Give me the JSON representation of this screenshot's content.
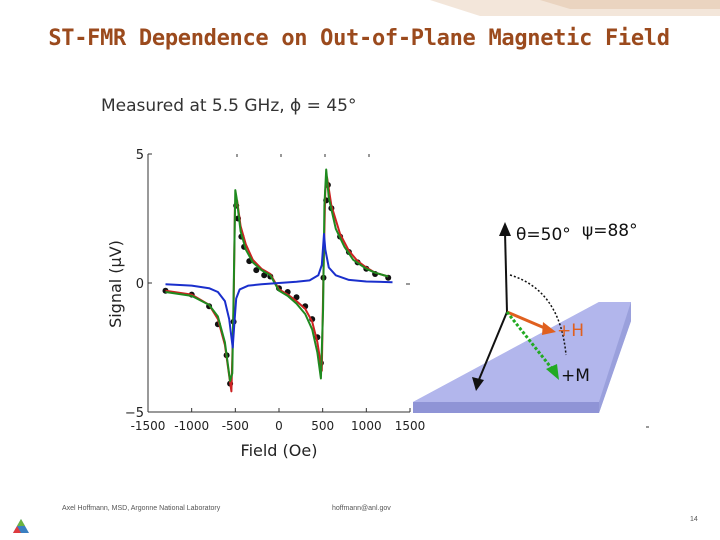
{
  "slide": {
    "title": "ST-FMR Dependence on Out-of-Plane Magnetic Field",
    "subtitle": "Measured at 5.5 GHz, ϕ = 45°",
    "footer_author": "Axel Hoffmann, MSD, Argonne National Laboratory",
    "footer_email": "hoffmann@anl.gov",
    "page_number": "14"
  },
  "chart_data": {
    "type": "line",
    "xlabel": "Field (Oe)",
    "ylabel": "Signal (μV)",
    "xlim": [
      -1500,
      1500
    ],
    "ylim": [
      -5,
      5
    ],
    "x_ticks": [
      "-1500",
      "-1000",
      "-500",
      "0",
      "500",
      "1000",
      "1500"
    ],
    "y_ticks": [
      "5",
      "0",
      "−5"
    ],
    "series": [
      {
        "color": "#111111",
        "style": "dots",
        "points": [
          [
            -1300,
            -0.3
          ],
          [
            -1000,
            -0.45
          ],
          [
            -800,
            -0.9
          ],
          [
            -700,
            -1.6
          ],
          [
            -600,
            -2.8
          ],
          [
            -560,
            -3.9
          ],
          [
            -520,
            -1.5
          ],
          [
            -490,
            3.0
          ],
          [
            -470,
            2.5
          ],
          [
            -430,
            1.8
          ],
          [
            -400,
            1.4
          ],
          [
            -340,
            0.85
          ],
          [
            -260,
            0.5
          ],
          [
            -170,
            0.3
          ],
          [
            -100,
            0.25
          ],
          [
            0,
            -0.2
          ],
          [
            100,
            -0.35
          ],
          [
            200,
            -0.55
          ],
          [
            300,
            -0.9
          ],
          [
            380,
            -1.4
          ],
          [
            440,
            -2.1
          ],
          [
            480,
            -3.1
          ],
          [
            510,
            0.2
          ],
          [
            540,
            3.2
          ],
          [
            560,
            3.8
          ],
          [
            600,
            2.9
          ],
          [
            700,
            1.8
          ],
          [
            800,
            1.2
          ],
          [
            900,
            0.8
          ],
          [
            1000,
            0.55
          ],
          [
            1100,
            0.35
          ],
          [
            1250,
            0.2
          ]
        ]
      },
      {
        "color": "#cc2222",
        "style": "line",
        "points": [
          [
            -1300,
            -0.3
          ],
          [
            -1000,
            -0.45
          ],
          [
            -800,
            -0.85
          ],
          [
            -700,
            -1.4
          ],
          [
            -620,
            -2.4
          ],
          [
            -570,
            -3.6
          ],
          [
            -545,
            -4.2
          ],
          [
            -520,
            -1.0
          ],
          [
            -505,
            2.9
          ],
          [
            -480,
            3.2
          ],
          [
            -440,
            2.2
          ],
          [
            -380,
            1.5
          ],
          [
            -300,
            0.9
          ],
          [
            -200,
            0.55
          ],
          [
            -100,
            0.35
          ],
          [
            0,
            -0.25
          ],
          [
            100,
            -0.45
          ],
          [
            200,
            -0.7
          ],
          [
            300,
            -1.0
          ],
          [
            380,
            -1.5
          ],
          [
            440,
            -2.3
          ],
          [
            490,
            -3.4
          ],
          [
            510,
            0.5
          ],
          [
            530,
            3.6
          ],
          [
            550,
            4.1
          ],
          [
            600,
            3.0
          ],
          [
            700,
            1.9
          ],
          [
            800,
            1.25
          ],
          [
            900,
            0.85
          ],
          [
            1000,
            0.6
          ],
          [
            1100,
            0.4
          ],
          [
            1250,
            0.25
          ]
        ]
      },
      {
        "color": "#1f8a1f",
        "style": "line",
        "points": [
          [
            -1300,
            -0.35
          ],
          [
            -1000,
            -0.5
          ],
          [
            -800,
            -0.85
          ],
          [
            -700,
            -1.3
          ],
          [
            -620,
            -2.3
          ],
          [
            -560,
            -3.8
          ],
          [
            -535,
            -3.5
          ],
          [
            -515,
            0.5
          ],
          [
            -500,
            3.6
          ],
          [
            -485,
            3.3
          ],
          [
            -440,
            2.0
          ],
          [
            -380,
            1.3
          ],
          [
            -300,
            0.8
          ],
          [
            -200,
            0.5
          ],
          [
            -100,
            0.3
          ],
          [
            0,
            -0.3
          ],
          [
            100,
            -0.5
          ],
          [
            200,
            -0.8
          ],
          [
            300,
            -1.2
          ],
          [
            380,
            -1.8
          ],
          [
            440,
            -2.7
          ],
          [
            480,
            -3.7
          ],
          [
            505,
            -1.0
          ],
          [
            520,
            3.0
          ],
          [
            540,
            4.4
          ],
          [
            570,
            3.3
          ],
          [
            650,
            2.1
          ],
          [
            750,
            1.4
          ],
          [
            850,
            0.9
          ],
          [
            1000,
            0.55
          ],
          [
            1100,
            0.4
          ],
          [
            1250,
            0.25
          ]
        ]
      },
      {
        "color": "#1a2fcc",
        "style": "line",
        "points": [
          [
            -1300,
            -0.05
          ],
          [
            -1000,
            -0.1
          ],
          [
            -800,
            -0.2
          ],
          [
            -700,
            -0.35
          ],
          [
            -620,
            -0.7
          ],
          [
            -570,
            -1.4
          ],
          [
            -530,
            -2.5
          ],
          [
            -510,
            -1.5
          ],
          [
            -490,
            -0.6
          ],
          [
            -450,
            -0.25
          ],
          [
            -350,
            -0.1
          ],
          [
            -200,
            -0.05
          ],
          [
            0,
            0
          ],
          [
            200,
            0.05
          ],
          [
            350,
            0.1
          ],
          [
            450,
            0.3
          ],
          [
            490,
            0.7
          ],
          [
            515,
            1.9
          ],
          [
            530,
            1.3
          ],
          [
            570,
            0.6
          ],
          [
            650,
            0.3
          ],
          [
            800,
            0.12
          ],
          [
            1000,
            0.06
          ],
          [
            1300,
            0.03
          ]
        ]
      }
    ]
  },
  "diagram": {
    "theta_label": "θ=50°",
    "psi_label": "ψ=88°",
    "h_label": "+H",
    "m_label": "+M"
  }
}
